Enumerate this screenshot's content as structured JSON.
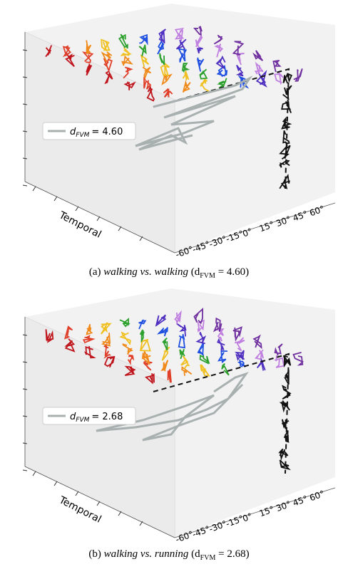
{
  "figures": [
    {
      "legend": {
        "symbol": "d",
        "subscript": "FVM",
        "value": "= 4.60"
      },
      "axis_label": "Temporal",
      "ticks": [
        "-60°",
        "-45°",
        "-30°",
        "-15°",
        "0°",
        "15°",
        "30°",
        "45°",
        "60°"
      ],
      "caption": {
        "label": "(a)",
        "text": "walking vs. walking",
        "metric_open": "(d",
        "metric_sub": "FVM",
        "metric_close": " = 4.60)"
      }
    },
    {
      "legend": {
        "symbol": "d",
        "subscript": "FVM",
        "value": "= 2.68"
      },
      "axis_label": "Temporal",
      "ticks": [
        "-60°",
        "-45°",
        "-30°",
        "-15°",
        "0°",
        "15°",
        "30°",
        "45°",
        "60°"
      ],
      "caption": {
        "label": "(b)",
        "text": "walking vs. running",
        "metric_open": "(d",
        "metric_sub": "FVM",
        "metric_close": " = 2.68)"
      }
    }
  ]
}
